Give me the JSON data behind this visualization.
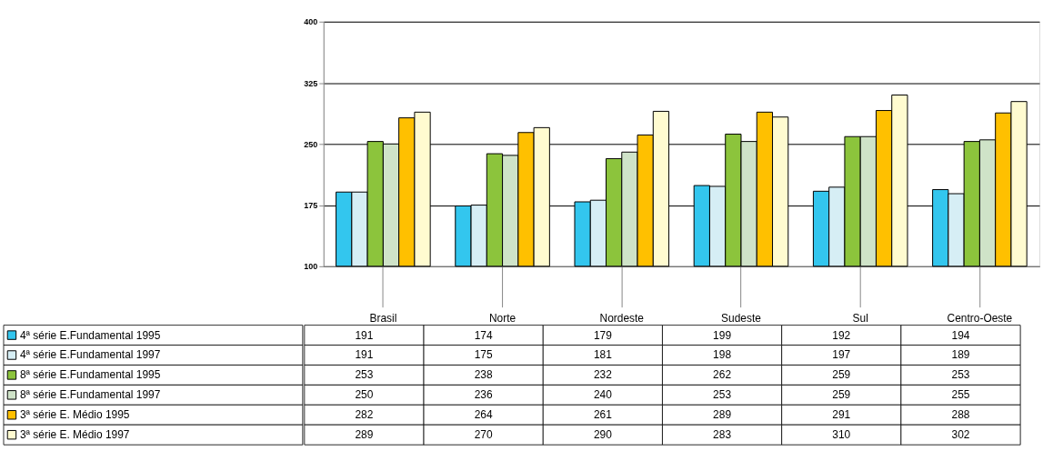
{
  "chart_data": {
    "type": "bar",
    "categories": [
      "Brasil",
      "Norte",
      "Nordeste",
      "Sudeste",
      "Sul",
      "Centro-Oeste"
    ],
    "series": [
      {
        "name": "4ª série E.Fundamental 1995",
        "color": "#33c6ee",
        "values": [
          191,
          174,
          179,
          199,
          192,
          194
        ]
      },
      {
        "name": "4ª série E.Fundamental 1997",
        "color": "#d6eef5",
        "values": [
          191,
          175,
          181,
          198,
          197,
          189
        ]
      },
      {
        "name": "8ª série E.Fundamental 1995",
        "color": "#8cc43c",
        "values": [
          253,
          238,
          232,
          262,
          259,
          253
        ]
      },
      {
        "name": "8ª série E.Fundamental 1997",
        "color": "#cfe3c8",
        "values": [
          250,
          236,
          240,
          253,
          259,
          255
        ]
      },
      {
        "name": "3ª série E. Médio 1995",
        "color": "#ffc000",
        "values": [
          282,
          264,
          261,
          289,
          291,
          288
        ]
      },
      {
        "name": "3ª série E. Médio 1997",
        "color": "#fffbd0",
        "values": [
          289,
          270,
          290,
          283,
          310,
          302
        ]
      }
    ],
    "ylim": [
      100,
      400
    ],
    "yticks": [
      100,
      175,
      250,
      325,
      400
    ],
    "grid": "y",
    "legend": "left",
    "data_labels": true
  }
}
